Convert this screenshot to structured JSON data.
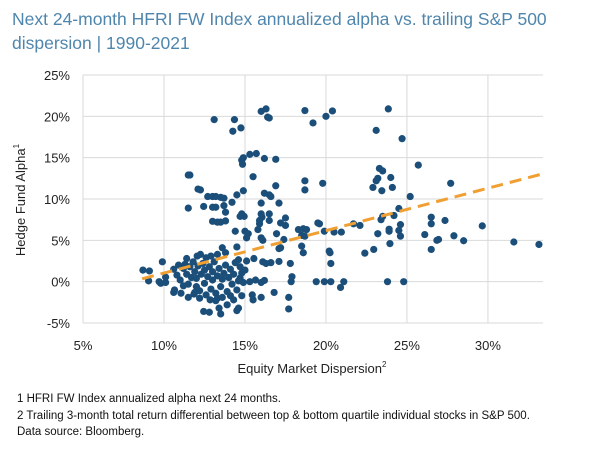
{
  "title": "Next 24-month HFRI FW Index annualized alpha vs. trailing S&P 500 dispersion | 1990-2021",
  "footnotes": [
    "1 HFRI FW Index annualized alpha next 24 months.",
    "2 Trailing 3-month total return differential between top & bottom quartile individual stocks in S&P 500.",
    "Data source: Bloomberg."
  ],
  "colors": {
    "title": "#4f86ad",
    "points": "#1b4f7a",
    "trendline": "#f0a033",
    "grid": "#d9d9d9"
  },
  "chart_data": {
    "type": "scatter",
    "xlabel": "Equity Market Dispersion",
    "xlabel_sup": "2",
    "ylabel": "Hedge Fund Alpha",
    "ylabel_sup": "1",
    "xlim": [
      5,
      33.4
    ],
    "ylim": [
      -5,
      25
    ],
    "x_ticks": [
      "5%",
      "10%",
      "15%",
      "20%",
      "25%",
      "30%"
    ],
    "x_tick_values": [
      5,
      10,
      15,
      20,
      25,
      30
    ],
    "y_ticks": [
      "25%",
      "20%",
      "15%",
      "10%",
      "5%",
      "0%",
      "-5%"
    ],
    "y_tick_values": [
      25,
      20,
      15,
      10,
      5,
      0,
      -5
    ],
    "grid": true,
    "trendline": {
      "style": "dashed",
      "points": [
        [
          8.65,
          0.35
        ],
        [
          33.3,
          13.0
        ]
      ]
    },
    "points": [
      [
        13.1,
        19.6
      ],
      [
        14.35,
        19.6
      ],
      [
        14.25,
        18.2
      ],
      [
        14.75,
        18.6
      ],
      [
        16.0,
        20.6
      ],
      [
        16.3,
        20.9
      ],
      [
        16.4,
        19.9
      ],
      [
        16.5,
        19.8
      ],
      [
        18.7,
        20.7
      ],
      [
        19.2,
        19.2
      ],
      [
        20.0,
        20.0
      ],
      [
        20.4,
        20.65
      ],
      [
        23.85,
        20.9
      ],
      [
        23.1,
        18.3
      ],
      [
        24.7,
        17.3
      ],
      [
        14.9,
        15.0
      ],
      [
        14.8,
        14.7
      ],
      [
        14.85,
        14.2
      ],
      [
        15.3,
        15.4
      ],
      [
        15.7,
        15.5
      ],
      [
        16.2,
        14.9
      ],
      [
        16.9,
        14.8
      ],
      [
        25.7,
        14.1
      ],
      [
        11.6,
        12.9
      ],
      [
        11.5,
        12.9
      ],
      [
        15.5,
        12.7
      ],
      [
        18.7,
        12.2
      ],
      [
        18.7,
        11.1
      ],
      [
        19.8,
        11.9
      ],
      [
        23.3,
        13.7
      ],
      [
        23.5,
        13.4
      ],
      [
        23.2,
        12.5
      ],
      [
        23.1,
        12.2
      ],
      [
        22.9,
        11.4
      ],
      [
        24.0,
        12.6
      ],
      [
        23.45,
        11.0
      ],
      [
        24.1,
        11.4
      ],
      [
        27.7,
        11.9
      ],
      [
        12.1,
        11.2
      ],
      [
        12.25,
        11.1
      ],
      [
        12.7,
        10.3
      ],
      [
        13.0,
        10.3
      ],
      [
        13.2,
        10.3
      ],
      [
        13.5,
        10.2
      ],
      [
        13.7,
        10.1
      ],
      [
        12.45,
        9.1
      ],
      [
        11.5,
        8.9
      ],
      [
        13.0,
        9.0
      ],
      [
        13.2,
        9.0
      ],
      [
        13.7,
        9.2
      ],
      [
        13.8,
        8.4
      ],
      [
        14.5,
        10.5
      ],
      [
        14.2,
        9.6
      ],
      [
        14.9,
        11.0
      ],
      [
        16.9,
        11.6
      ],
      [
        16.2,
        10.7
      ],
      [
        16.5,
        10.5
      ],
      [
        16.6,
        10.3
      ],
      [
        16.0,
        9.5
      ],
      [
        17.1,
        9.5
      ],
      [
        25.2,
        10.3
      ],
      [
        14.8,
        8.2
      ],
      [
        14.95,
        7.9
      ],
      [
        14.7,
        7.9
      ],
      [
        13.0,
        7.3
      ],
      [
        13.3,
        7.2
      ],
      [
        13.5,
        7.2
      ],
      [
        13.8,
        7.35
      ],
      [
        16.0,
        8.2
      ],
      [
        16.05,
        7.8
      ],
      [
        15.9,
        7.4
      ],
      [
        15.9,
        7.0
      ],
      [
        16.5,
        8.2
      ],
      [
        16.5,
        7.4
      ],
      [
        17.5,
        7.7
      ],
      [
        17.2,
        7.1
      ],
      [
        17.5,
        6.8
      ],
      [
        14.4,
        6.1
      ],
      [
        15.0,
        6.1
      ],
      [
        15.2,
        5.8
      ],
      [
        15.1,
        5.3
      ],
      [
        15.8,
        6.3
      ],
      [
        16.0,
        5.3
      ],
      [
        16.1,
        5.0
      ],
      [
        16.95,
        5.8
      ],
      [
        17.4,
        5.1
      ],
      [
        18.3,
        6.3
      ],
      [
        18.6,
        6.4
      ],
      [
        18.8,
        6.3
      ],
      [
        18.5,
        5.6
      ],
      [
        18.7,
        5.5
      ],
      [
        19.9,
        6.1
      ],
      [
        19.5,
        7.1
      ],
      [
        19.6,
        7.0
      ],
      [
        20.5,
        6.0
      ],
      [
        20.95,
        6.0
      ],
      [
        21.7,
        7.0
      ],
      [
        22.1,
        6.8
      ],
      [
        23.4,
        7.5
      ],
      [
        23.5,
        7.9
      ],
      [
        23.2,
        5.8
      ],
      [
        23.9,
        6.35
      ],
      [
        23.9,
        6.1
      ],
      [
        24.2,
        8.0
      ],
      [
        24.5,
        8.85
      ],
      [
        24.6,
        6.9
      ],
      [
        24.5,
        6.2
      ],
      [
        24.6,
        5.5
      ],
      [
        26.5,
        7.8
      ],
      [
        26.5,
        7.0
      ],
      [
        27.35,
        7.4
      ],
      [
        26.1,
        5.7
      ],
      [
        27.9,
        5.55
      ],
      [
        29.65,
        6.75
      ],
      [
        26.85,
        5.0
      ],
      [
        26.95,
        5.1
      ],
      [
        28.5,
        4.95
      ],
      [
        26.5,
        3.9
      ],
      [
        31.6,
        4.8
      ],
      [
        33.15,
        4.5
      ],
      [
        22.4,
        3.45
      ],
      [
        22.95,
        3.9
      ],
      [
        23.95,
        4.6
      ],
      [
        20.2,
        3.7
      ],
      [
        20.25,
        3.5
      ],
      [
        20.3,
        2.2
      ],
      [
        18.5,
        4.3
      ],
      [
        18.6,
        3.5
      ],
      [
        17.1,
        4.0
      ],
      [
        17.2,
        4.1
      ],
      [
        17.8,
        2.2
      ],
      [
        17.9,
        0.6
      ],
      [
        17.85,
        0.0
      ],
      [
        17.7,
        -1.9
      ],
      [
        17.7,
        -3.3
      ],
      [
        16.8,
        -1.3
      ],
      [
        19.4,
        0.0
      ],
      [
        19.9,
        0.0
      ],
      [
        20.3,
        0.0
      ],
      [
        21.1,
        0.0
      ],
      [
        20.9,
        -0.7
      ],
      [
        23.8,
        0.0
      ],
      [
        24.8,
        0.0
      ],
      [
        8.7,
        1.4
      ],
      [
        9.1,
        1.3
      ],
      [
        9.05,
        0.1
      ],
      [
        9.9,
        2.4
      ],
      [
        9.7,
        0.0
      ],
      [
        9.8,
        -0.2
      ],
      [
        10.1,
        0.55
      ],
      [
        10.1,
        -0.1
      ],
      [
        10.65,
        -1.0
      ],
      [
        10.6,
        -1.3
      ],
      [
        11.05,
        -1.4
      ],
      [
        11.5,
        -1.9
      ],
      [
        11.2,
        -0.5
      ],
      [
        11.85,
        -1.5
      ],
      [
        12.45,
        -3.6
      ],
      [
        12.8,
        -3.7
      ],
      [
        13.5,
        -3.9
      ],
      [
        13.4,
        -3.2
      ],
      [
        14.5,
        -3.5
      ],
      [
        14.6,
        -3.2
      ],
      [
        13.9,
        -2.8
      ],
      [
        15.5,
        -2.2
      ],
      [
        16.0,
        -1.9
      ],
      [
        15.45,
        -1.6
      ],
      [
        14.8,
        -1.7
      ],
      [
        14.1,
        -1.7
      ],
      [
        12.85,
        -2.2
      ],
      [
        13.2,
        -2.3
      ],
      [
        12.05,
        3.1
      ],
      [
        12.25,
        3.3
      ],
      [
        12.9,
        3.1
      ],
      [
        13.3,
        3.3
      ],
      [
        13.6,
        4.1
      ],
      [
        13.8,
        3.5
      ],
      [
        14.5,
        4.2
      ],
      [
        14.6,
        2.65
      ],
      [
        15.1,
        2.5
      ],
      [
        15.55,
        2.8
      ],
      [
        16.1,
        2.4
      ],
      [
        16.3,
        2.2
      ],
      [
        16.6,
        2.3
      ],
      [
        17.1,
        2.45
      ],
      [
        15.3,
        0.0
      ],
      [
        15.65,
        0.2
      ],
      [
        16.0,
        -0.1
      ],
      [
        16.2,
        0.15
      ],
      [
        15.0,
        1.4
      ],
      [
        14.8,
        1.05
      ],
      [
        14.7,
        0.45
      ],
      [
        14.9,
        -0.1
      ],
      [
        10.6,
        1.5
      ],
      [
        10.8,
        0.8
      ],
      [
        10.9,
        2.0
      ],
      [
        11.0,
        0.2
      ],
      [
        11.2,
        1.6
      ],
      [
        11.3,
        2.1
      ],
      [
        11.4,
        0.9
      ],
      [
        11.5,
        -0.3
      ],
      [
        11.6,
        1.8
      ],
      [
        11.7,
        0.5
      ],
      [
        11.8,
        2.4
      ],
      [
        11.9,
        1.2
      ],
      [
        12.0,
        -0.6
      ],
      [
        12.0,
        0.4
      ],
      [
        12.1,
        1.9
      ],
      [
        12.2,
        -1.1
      ],
      [
        12.3,
        0.9
      ],
      [
        12.4,
        2.2
      ],
      [
        12.5,
        -0.2
      ],
      [
        12.5,
        1.4
      ],
      [
        12.6,
        -1.6
      ],
      [
        12.7,
        0.6
      ],
      [
        12.8,
        1.8
      ],
      [
        12.9,
        -0.9
      ],
      [
        13.0,
        0.2
      ],
      [
        13.0,
        1.2
      ],
      [
        13.1,
        2.4
      ],
      [
        13.2,
        -1.4
      ],
      [
        13.3,
        0.7
      ],
      [
        13.4,
        1.6
      ],
      [
        13.5,
        -0.6
      ],
      [
        13.6,
        0.3
      ],
      [
        13.7,
        1.0
      ],
      [
        13.8,
        2.0
      ],
      [
        13.9,
        -1.2
      ],
      [
        14.0,
        0.5
      ],
      [
        14.1,
        1.5
      ],
      [
        14.2,
        -0.3
      ],
      [
        14.3,
        0.9
      ],
      [
        14.4,
        2.3
      ],
      [
        14.5,
        -1.0
      ],
      [
        14.6,
        0.1
      ],
      [
        14.7,
        1.8
      ],
      [
        11.4,
        2.8
      ],
      [
        12.6,
        2.9
      ],
      [
        13.3,
        -2.0
      ],
      [
        12.2,
        -2.0
      ],
      [
        13.6,
        -1.9
      ],
      [
        14.3,
        -2.2
      ],
      [
        11.9,
        -1.3
      ]
    ]
  }
}
